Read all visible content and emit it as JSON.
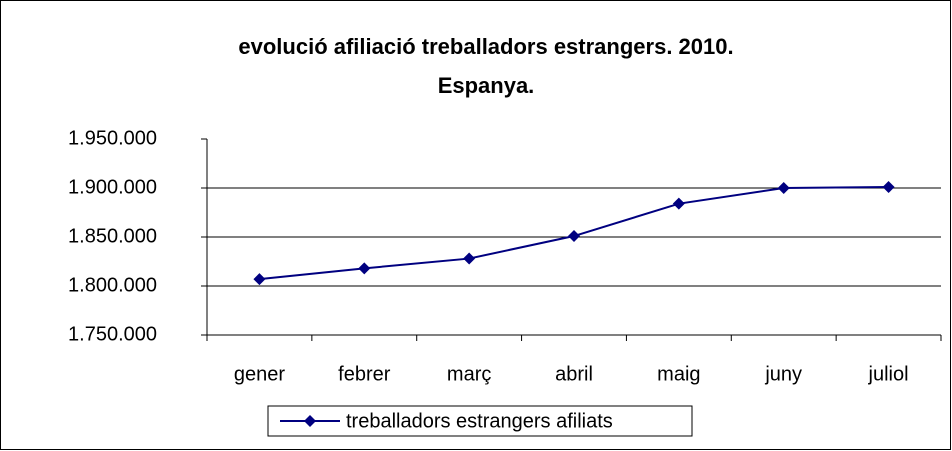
{
  "chart_data": {
    "type": "line",
    "title": "evolució afiliació treballadors estrangers. 2010.",
    "subtitle": "Espanya.",
    "categories": [
      "gener",
      "febrer",
      "març",
      "abril",
      "maig",
      "juny",
      "juliol"
    ],
    "series": [
      {
        "name": "treballadors estrangers afiliats",
        "color": "#000080",
        "values": [
          1807000,
          1818000,
          1828000,
          1851000,
          1884000,
          1900000,
          1901000
        ]
      }
    ],
    "ylim": [
      1750000,
      1950000
    ],
    "yticks": [
      {
        "value": 1750000,
        "label": "1.750.000"
      },
      {
        "value": 1800000,
        "label": "1.800.000"
      },
      {
        "value": 1850000,
        "label": "1.850.000"
      },
      {
        "value": 1900000,
        "label": "1.900.000"
      },
      {
        "value": 1950000,
        "label": "1.950.000"
      }
    ],
    "grid": true,
    "legend": "bottom"
  }
}
